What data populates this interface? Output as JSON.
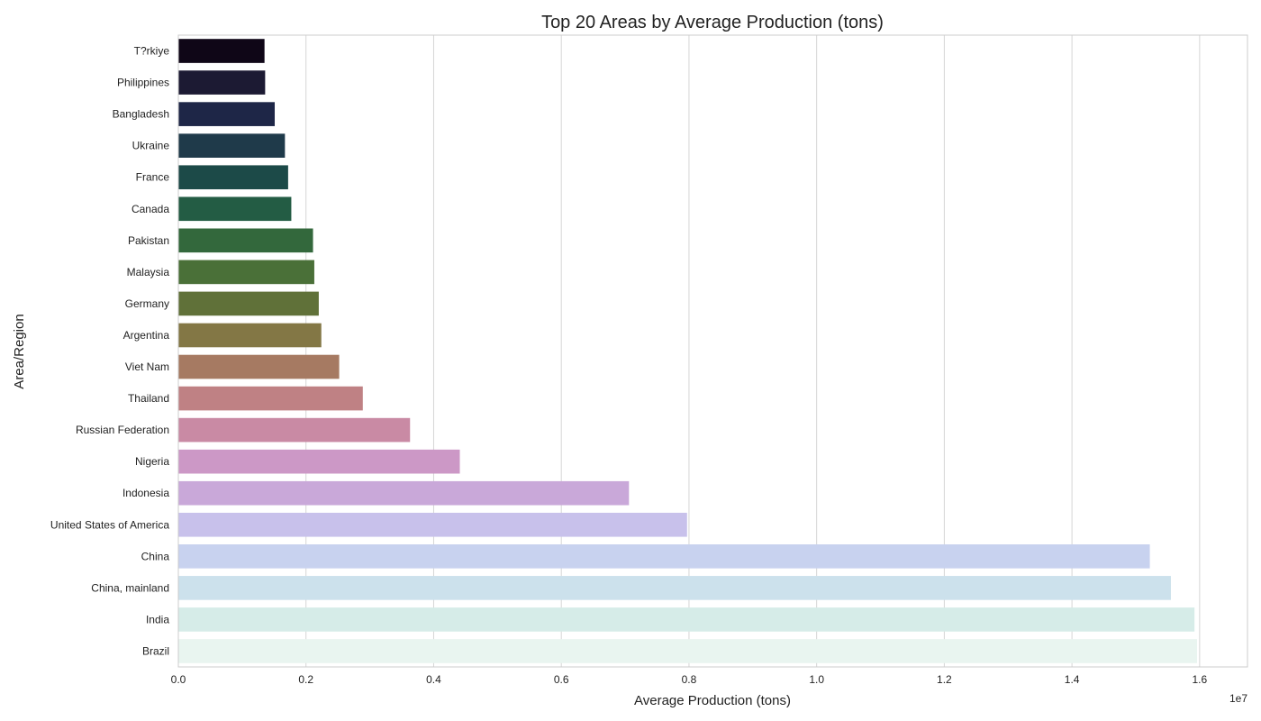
{
  "chart_data": {
    "type": "bar",
    "orientation": "horizontal",
    "title": "Top 20 Areas by Average Production (tons)",
    "xlabel": "Average Production (tons)",
    "ylabel": "Area/Region",
    "x_scale_label": "1e7",
    "xlim": [
      0,
      1.675
    ],
    "x_ticks": [
      0.0,
      0.2,
      0.4,
      0.6,
      0.8,
      1.0,
      1.2,
      1.4,
      1.6
    ],
    "x_tick_labels": [
      "0.0",
      "0.2",
      "0.4",
      "0.6",
      "0.8",
      "1.0",
      "1.2",
      "1.4",
      "1.6"
    ],
    "grid": "vertical",
    "legend": "none",
    "categories": [
      "T?rkiye",
      "Philippines",
      "Bangladesh",
      "Ukraine",
      "France",
      "Canada",
      "Pakistan",
      "Malaysia",
      "Germany",
      "Argentina",
      "Viet Nam",
      "Thailand",
      "Russian Federation",
      "Nigeria",
      "Indonesia",
      "United States of America",
      "China",
      "China, mainland",
      "India",
      "Brazil"
    ],
    "values": [
      0.135,
      0.136,
      0.151,
      0.167,
      0.172,
      0.177,
      0.211,
      0.213,
      0.22,
      0.224,
      0.252,
      0.289,
      0.363,
      0.441,
      0.706,
      0.797,
      1.522,
      1.555,
      1.592,
      1.596
    ],
    "colors": [
      "#0f0617",
      "#1c1a33",
      "#1e2647",
      "#1f3a4a",
      "#1c4a48",
      "#235c44",
      "#33683c",
      "#4a7038",
      "#607139",
      "#837745",
      "#a67a62",
      "#bf8184",
      "#c98aa4",
      "#cc98c6",
      "#c9a8d9",
      "#c8c1eb",
      "#c8d2ef",
      "#cce1ec",
      "#d6ece8",
      "#e9f5f0"
    ]
  }
}
